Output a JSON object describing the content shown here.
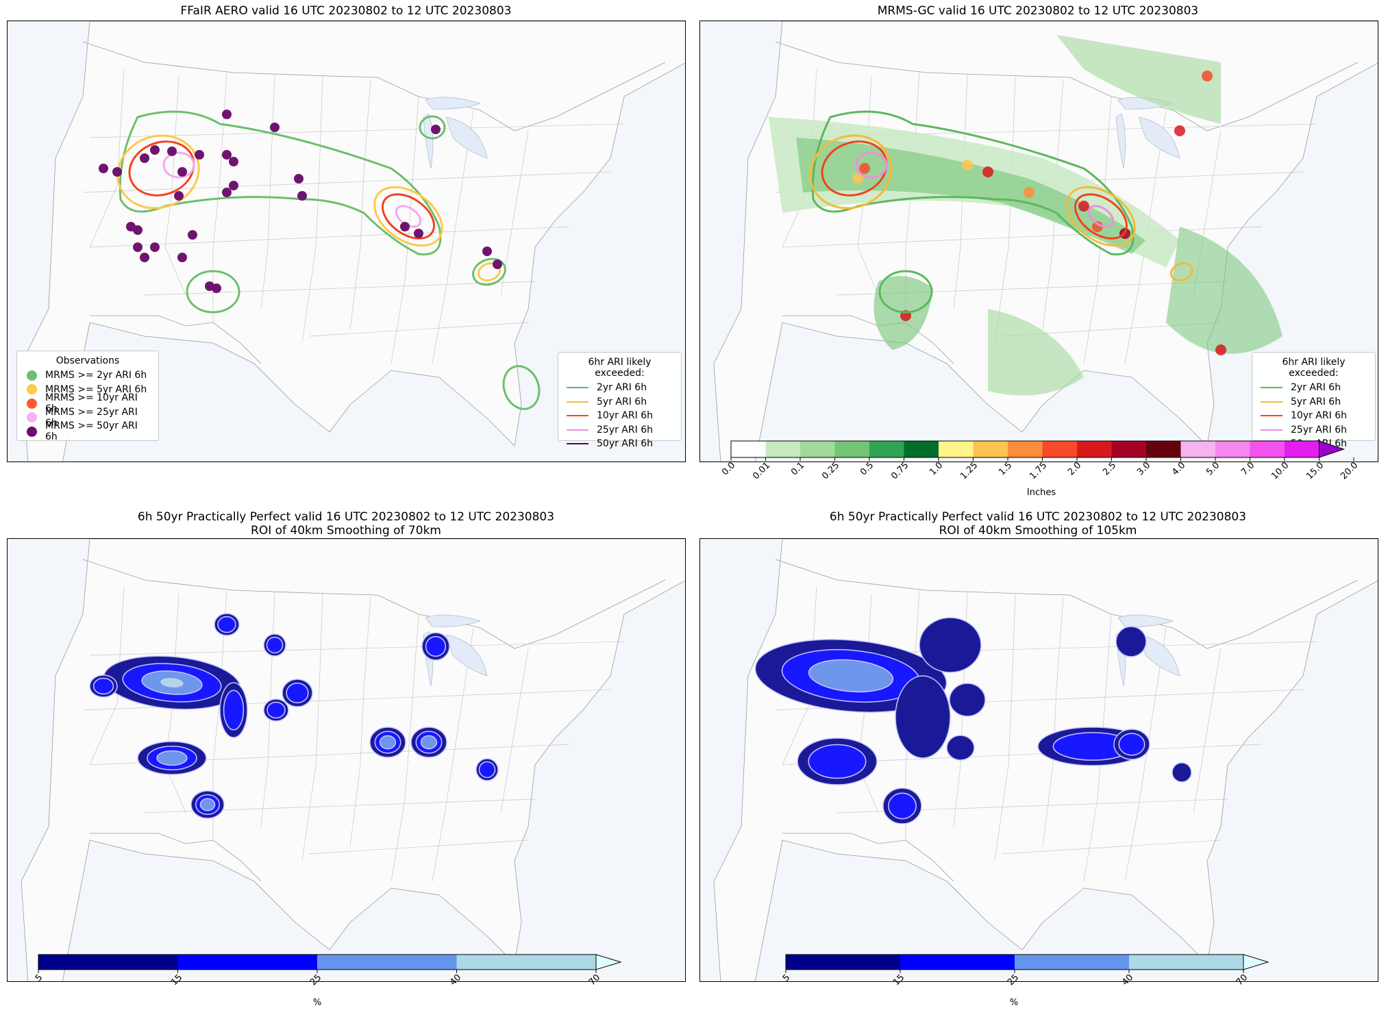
{
  "panels": {
    "p1": {
      "title": "FFaIR AERO valid 16 UTC 20230802 to 12 UTC 20230803"
    },
    "p2": {
      "title": "MRMS-GC valid 16 UTC 20230802 to 12 UTC 20230803"
    },
    "p3": {
      "title": "6h 50yr Practically Perfect valid 16 UTC 20230802 to 12 UTC 20230803\nROI of 40km Smoothing of 70km"
    },
    "p4": {
      "title": "6h 50yr Practically Perfect valid 16 UTC 20230802 to 12 UTC 20230803\nROI of 40km Smoothing of 105km"
    }
  },
  "obs_legend": {
    "title": "Observations",
    "items": [
      {
        "label": "MRMS >= 2yr ARI 6h",
        "color": "#6cbf6c"
      },
      {
        "label": "MRMS >= 5yr ARI 6h",
        "color": "#fdc94a"
      },
      {
        "label": "MRMS >= 10yr ARI 6h",
        "color": "#fb5a2e"
      },
      {
        "label": "MRMS >= 25yr ARI 6h",
        "color": "#f7b0f4"
      },
      {
        "label": "MRMS >= 50yr ARI 6h",
        "color": "#6e0a6e"
      }
    ]
  },
  "ari_legend": {
    "title": "6hr ARI likely exceeded:",
    "items": [
      {
        "label": "2yr ARI 6h",
        "color": "#5cb85c"
      },
      {
        "label": "5yr ARI 6h",
        "color": "#f5b93a"
      },
      {
        "label": "10yr ARI 6h",
        "color": "#f2421a"
      },
      {
        "label": "25yr ARI 6h",
        "color": "#ee8ee0"
      },
      {
        "label": "50yr ARI 6h",
        "color": "#5a005a"
      }
    ]
  },
  "precip_colorbar": {
    "label": "Inches",
    "ticks": [
      "0.0",
      "0.01",
      "0.1",
      "0.25",
      "0.5",
      "0.75",
      "1.0",
      "1.25",
      "1.5",
      "1.75",
      "2.0",
      "2.5",
      "3.0",
      "4.0",
      "5.0",
      "7.0",
      "10.0",
      "15.0",
      "20.0"
    ],
    "colors": [
      "#ffffff",
      "#c7e9c0",
      "#a1d99b",
      "#74c476",
      "#31a354",
      "#006d2c",
      "#fff58a",
      "#fec44f",
      "#fd8d3c",
      "#f74a2a",
      "#d7191c",
      "#a50026",
      "#67000d",
      "#f7b3f0",
      "#f587ef",
      "#f352ee",
      "#e31ff0",
      "#9b00c8"
    ]
  },
  "pct_colorbar_1": {
    "label": "%",
    "ticks": [
      "5",
      "15",
      "25",
      "40",
      "70"
    ],
    "colors": [
      "#00008b",
      "#0000ff",
      "#6495ed",
      "#add8e6",
      "#e0ffff"
    ]
  },
  "pct_colorbar_2": {
    "label": "%",
    "ticks": [
      "5",
      "15",
      "25",
      "40",
      "70"
    ],
    "colors": [
      "#00008b",
      "#0000ff",
      "#6495ed",
      "#add8e6",
      "#e0ffff"
    ]
  }
}
